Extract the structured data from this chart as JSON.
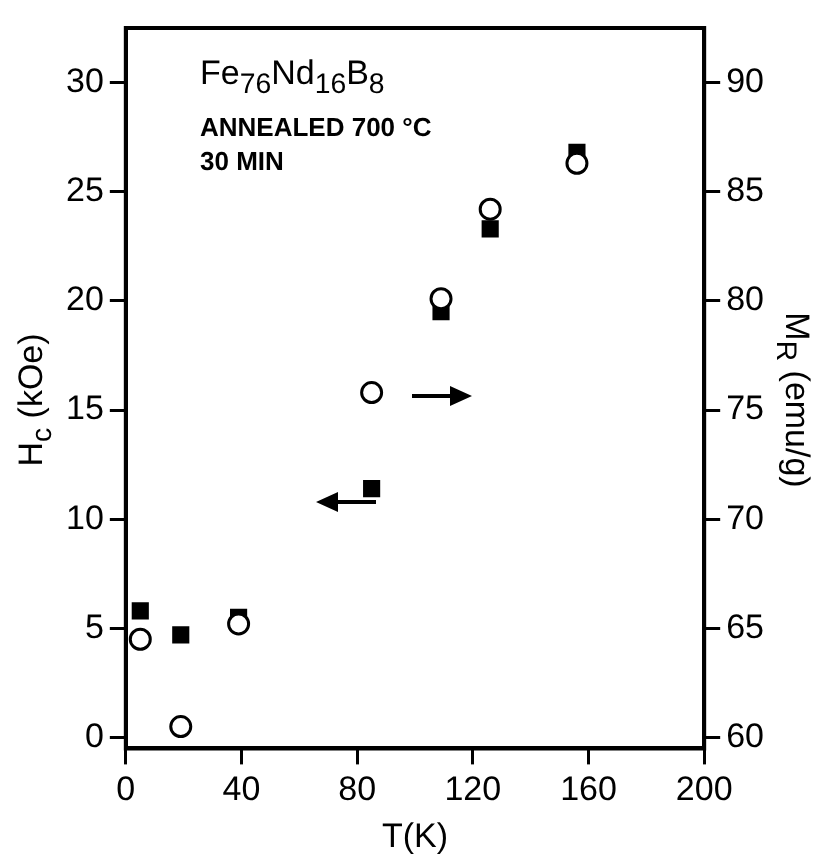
{
  "chart_data": {
    "type": "scatter",
    "xlabel": "T(K)",
    "ylabel": "H$_{c}$ (kOe)",
    "y2label": "M$_{R}$ (emu/g)",
    "annotations": [
      "Fe$_{76}$Nd$_{16}$B$_{8}$",
      "ANNEALED 700 °C",
      "30 MIN"
    ],
    "series": [
      {
        "color": "#000000",
        "marker": "square",
        "x": [
          5,
          19,
          39,
          85,
          109,
          126,
          156
        ],
        "values": [
          5.8,
          4.7,
          5.5,
          11.4,
          19.5,
          23.3,
          26.8
        ]
      },
      {
        "color": "#000000",
        "marker": "circle",
        "axis": "y2",
        "x": [
          5,
          19,
          39,
          85,
          109,
          126,
          156
        ],
        "values": [
          64.5,
          60.5,
          65.2,
          75.8,
          80.1,
          84.2,
          86.3
        ]
      }
    ],
    "xlim": [
      0,
      200
    ],
    "xticks": [
      0,
      40,
      80,
      120,
      160,
      200
    ],
    "ylim": [
      -0.5,
      32.5
    ],
    "yticks": [
      0,
      5,
      10,
      15,
      20,
      25,
      30
    ],
    "y2lim": [
      59.5,
      92.5
    ],
    "y2ticks": [
      60,
      65,
      70,
      75,
      80,
      85,
      90
    ],
    "grid": false,
    "legend": false
  }
}
